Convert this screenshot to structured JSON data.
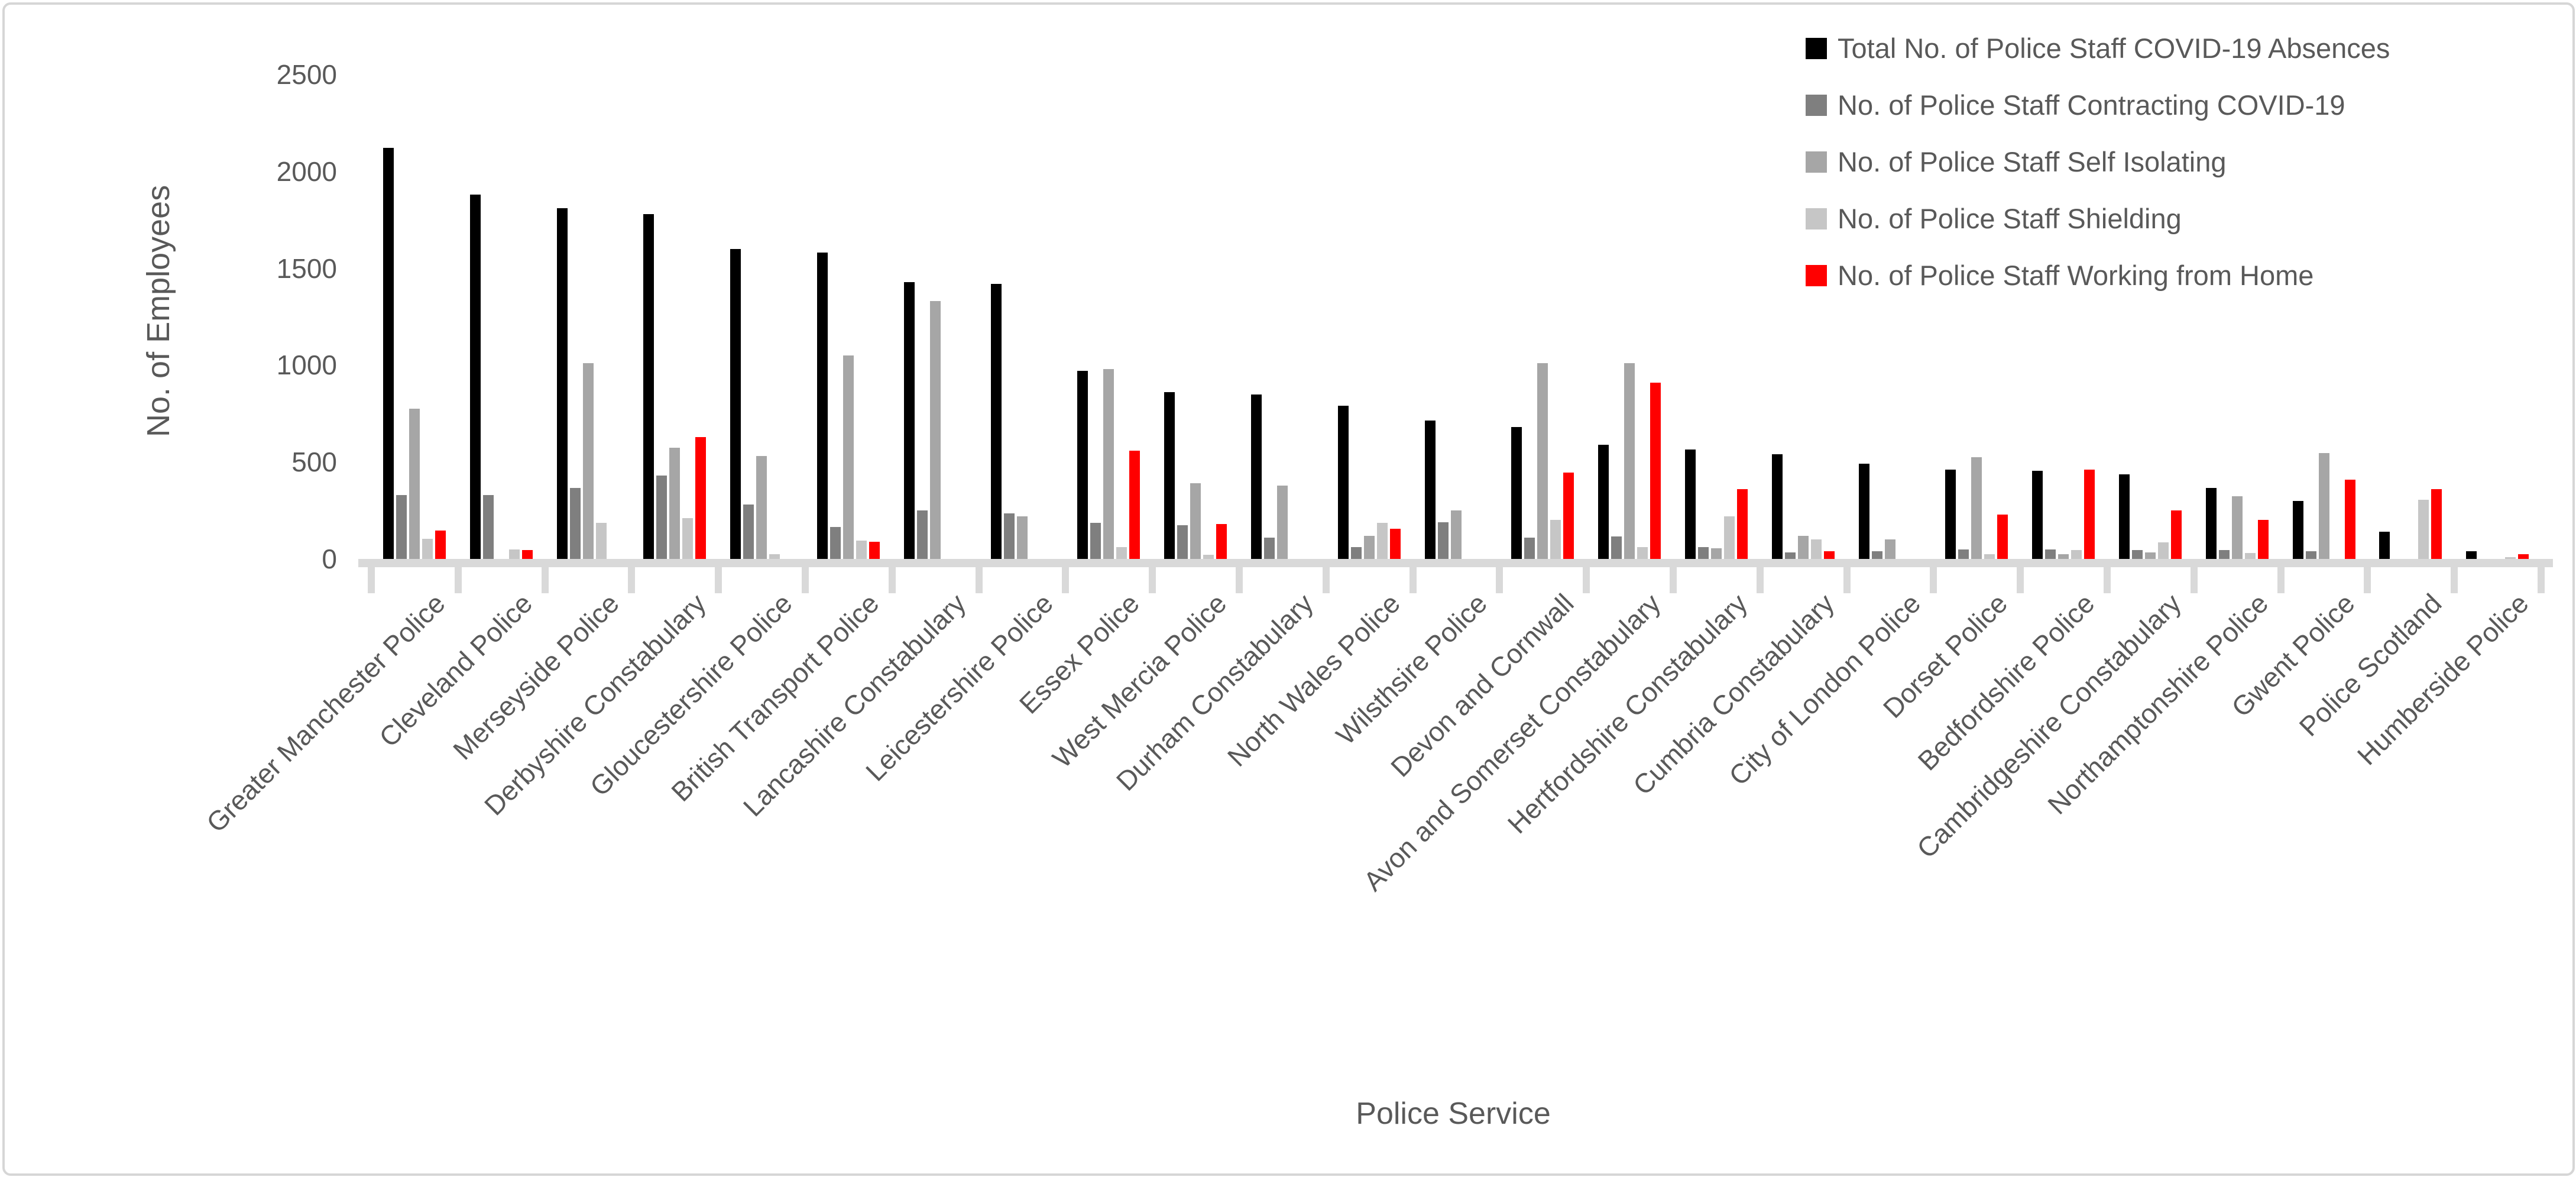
{
  "chart_data": {
    "type": "bar",
    "title": "",
    "xlabel": "Police Service",
    "ylabel": "No. of Employees",
    "ylim": [
      0,
      2500
    ],
    "yticks": [
      0,
      500,
      1000,
      1500,
      2000,
      2500
    ],
    "grid": false,
    "legend_position": "top-right",
    "categories": [
      "Greater Manchester Police",
      "Cleveland Police",
      "Merseyside Police",
      "Derbyshire Constabulary",
      "Gloucestershire Police",
      "British Transport Police",
      "Lancashire Constabulary",
      "Leicestershire Police",
      "Essex Police",
      "West Mercia Police",
      "Durham Constabulary",
      "North Wales Police",
      "Wilsthsire Police",
      "Devon and Cornwall",
      "Avon and Somerset Constabulary",
      "Hertfordshire Constabulary",
      "Cumbria Constabulary",
      "City of London Police",
      "Dorset Police",
      "Bedfordshire Police",
      "Cambridgeshire Constabulary",
      "Northamptonshire Police",
      "Gwent Police",
      "Police Scotland",
      "Humberside Police"
    ],
    "series": [
      {
        "name": "Total No. of Police Staff COVID-19 Absences",
        "color": "#000000",
        "values": [
          2120,
          1880,
          1810,
          1780,
          1600,
          1580,
          1430,
          1420,
          970,
          860,
          850,
          790,
          715,
          680,
          590,
          565,
          540,
          490,
          460,
          455,
          435,
          365,
          300,
          140,
          40
        ]
      },
      {
        "name": "No. of Police Staff Contracting COVID-19",
        "color": "#7f7f7f",
        "values": [
          330,
          330,
          365,
          430,
          280,
          165,
          250,
          235,
          185,
          175,
          110,
          60,
          190,
          110,
          115,
          60,
          35,
          40,
          50,
          50,
          45,
          45,
          40,
          0,
          0
        ]
      },
      {
        "name": "No. of Police Staff Self Isolating",
        "color": "#a6a6a6",
        "values": [
          775,
          0,
          1010,
          575,
          530,
          1050,
          1330,
          220,
          980,
          390,
          380,
          120,
          250,
          1010,
          1010,
          55,
          120,
          100,
          525,
          25,
          35,
          325,
          545,
          0,
          0
        ]
      },
      {
        "name": "No. of Police Staff Shielding",
        "color": "#c6c6c6",
        "values": [
          105,
          50,
          185,
          210,
          25,
          95,
          0,
          0,
          60,
          20,
          0,
          185,
          0,
          200,
          60,
          220,
          100,
          0,
          25,
          45,
          85,
          30,
          0,
          305,
          10
        ]
      },
      {
        "name": "No. of Police Staff Working from Home",
        "color": "#ff0000",
        "values": [
          145,
          45,
          0,
          630,
          0,
          90,
          0,
          0,
          560,
          180,
          0,
          155,
          0,
          445,
          910,
          360,
          40,
          0,
          230,
          460,
          250,
          200,
          410,
          360,
          25
        ]
      }
    ]
  }
}
